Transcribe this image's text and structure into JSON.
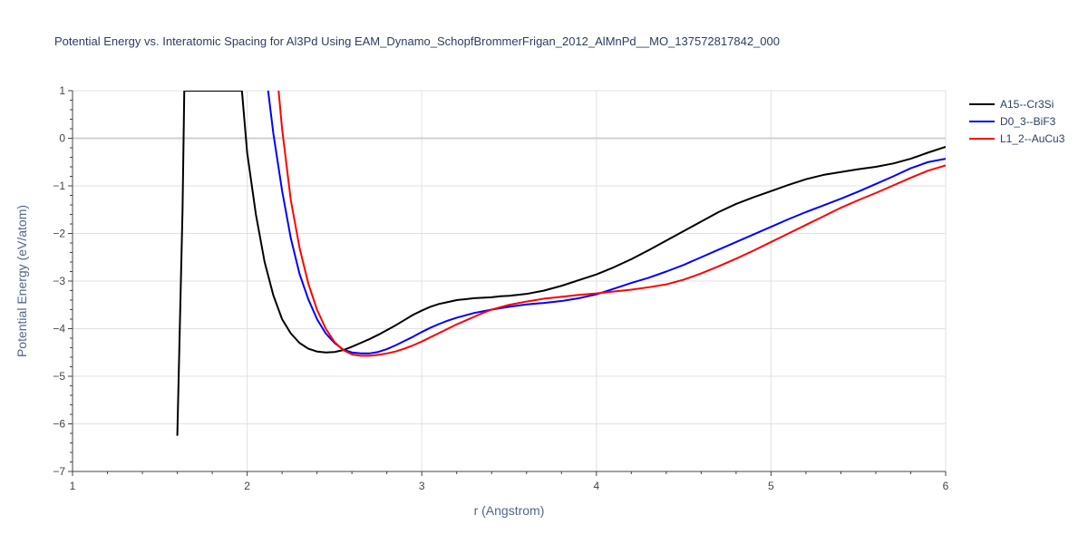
{
  "chart_data": {
    "type": "line",
    "title": "Potential Energy vs. Interatomic Spacing for Al3Pd Using EAM_Dynamo_SchopfBrommerFrigan_2012_AlMnPd__MO_137572817842_000",
    "xlabel": "r (Angstrom)",
    "ylabel": "Potential Energy (eV/atom)",
    "xlim": [
      1,
      6
    ],
    "ylim": [
      -7,
      1
    ],
    "xticks": [
      1,
      2,
      3,
      4,
      5,
      6
    ],
    "yticks": [
      1,
      0,
      -1,
      -2,
      -3,
      -4,
      -5,
      -6,
      -7
    ],
    "xtick_labels": [
      "1",
      "2",
      "3",
      "4",
      "5",
      "6"
    ],
    "ytick_labels": [
      "1",
      "0",
      "−1",
      "−2",
      "−3",
      "−4",
      "−5",
      "−6",
      "−7"
    ],
    "grid": true,
    "legend_position": "top-right",
    "series": [
      {
        "name": "A15--Cr3Si",
        "color": "#000000",
        "x": [
          1.6,
          1.63,
          1.64,
          1.97,
          2.0,
          2.05,
          2.1,
          2.15,
          2.2,
          2.25,
          2.3,
          2.35,
          2.4,
          2.45,
          2.5,
          2.55,
          2.6,
          2.65,
          2.7,
          2.75,
          2.8,
          2.85,
          2.9,
          2.95,
          3.0,
          3.05,
          3.1,
          3.15,
          3.2,
          3.25,
          3.3,
          3.35,
          3.4,
          3.45,
          3.5,
          3.6,
          3.7,
          3.8,
          3.9,
          4.0,
          4.1,
          4.2,
          4.3,
          4.4,
          4.5,
          4.6,
          4.7,
          4.8,
          4.9,
          5.0,
          5.1,
          5.2,
          5.3,
          5.4,
          5.5,
          5.6,
          5.7,
          5.8,
          5.9,
          6.0
        ],
        "y": [
          -6.25,
          -1.5,
          1.0,
          1.0,
          -0.3,
          -1.6,
          -2.6,
          -3.3,
          -3.8,
          -4.1,
          -4.3,
          -4.42,
          -4.48,
          -4.5,
          -4.49,
          -4.45,
          -4.38,
          -4.3,
          -4.22,
          -4.13,
          -4.03,
          -3.93,
          -3.82,
          -3.71,
          -3.62,
          -3.54,
          -3.48,
          -3.44,
          -3.4,
          -3.38,
          -3.36,
          -3.35,
          -3.34,
          -3.32,
          -3.31,
          -3.27,
          -3.2,
          -3.1,
          -2.98,
          -2.86,
          -2.71,
          -2.54,
          -2.35,
          -2.15,
          -1.95,
          -1.75,
          -1.55,
          -1.38,
          -1.24,
          -1.11,
          -0.98,
          -0.86,
          -0.77,
          -0.71,
          -0.65,
          -0.6,
          -0.53,
          -0.43,
          -0.3,
          -0.18
        ]
      },
      {
        "name": "D0_3--BiF3",
        "color": "#0000ff",
        "x": [
          2.12,
          2.15,
          2.2,
          2.25,
          2.3,
          2.35,
          2.4,
          2.45,
          2.5,
          2.55,
          2.6,
          2.65,
          2.7,
          2.75,
          2.8,
          2.85,
          2.9,
          2.95,
          3.0,
          3.05,
          3.1,
          3.15,
          3.2,
          3.25,
          3.3,
          3.4,
          3.5,
          3.6,
          3.7,
          3.8,
          3.9,
          4.0,
          4.1,
          4.2,
          4.3,
          4.4,
          4.5,
          4.6,
          4.7,
          4.8,
          4.9,
          5.0,
          5.1,
          5.2,
          5.3,
          5.4,
          5.5,
          5.6,
          5.7,
          5.8,
          5.9,
          6.0
        ],
        "y": [
          1.0,
          0.1,
          -1.1,
          -2.1,
          -2.85,
          -3.38,
          -3.8,
          -4.1,
          -4.3,
          -4.44,
          -4.5,
          -4.52,
          -4.52,
          -4.49,
          -4.43,
          -4.35,
          -4.26,
          -4.17,
          -4.07,
          -3.98,
          -3.9,
          -3.83,
          -3.77,
          -3.72,
          -3.67,
          -3.6,
          -3.54,
          -3.49,
          -3.46,
          -3.42,
          -3.36,
          -3.28,
          -3.16,
          -3.04,
          -2.93,
          -2.8,
          -2.66,
          -2.5,
          -2.34,
          -2.18,
          -2.02,
          -1.86,
          -1.7,
          -1.55,
          -1.41,
          -1.27,
          -1.12,
          -0.96,
          -0.8,
          -0.63,
          -0.5,
          -0.43
        ]
      },
      {
        "name": "L1_2--AuCu3",
        "color": "#ff0000",
        "x": [
          2.18,
          2.2,
          2.25,
          2.3,
          2.35,
          2.4,
          2.45,
          2.5,
          2.55,
          2.6,
          2.65,
          2.7,
          2.75,
          2.8,
          2.85,
          2.9,
          2.95,
          3.0,
          3.05,
          3.1,
          3.15,
          3.2,
          3.25,
          3.3,
          3.35,
          3.4,
          3.5,
          3.6,
          3.7,
          3.8,
          3.9,
          4.0,
          4.1,
          4.2,
          4.3,
          4.4,
          4.5,
          4.6,
          4.7,
          4.8,
          4.9,
          5.0,
          5.1,
          5.2,
          5.3,
          5.4,
          5.5,
          5.6,
          5.7,
          5.8,
          5.9,
          6.0
        ],
        "y": [
          1.0,
          0.2,
          -1.3,
          -2.3,
          -3.05,
          -3.6,
          -4.0,
          -4.28,
          -4.45,
          -4.54,
          -4.57,
          -4.57,
          -4.55,
          -4.52,
          -4.48,
          -4.42,
          -4.35,
          -4.27,
          -4.18,
          -4.09,
          -4.0,
          -3.91,
          -3.83,
          -3.75,
          -3.67,
          -3.6,
          -3.5,
          -3.43,
          -3.37,
          -3.33,
          -3.29,
          -3.26,
          -3.22,
          -3.18,
          -3.13,
          -3.07,
          -2.97,
          -2.84,
          -2.69,
          -2.53,
          -2.36,
          -2.18,
          -2.0,
          -1.82,
          -1.64,
          -1.46,
          -1.3,
          -1.15,
          -0.99,
          -0.83,
          -0.68,
          -0.57
        ]
      }
    ]
  }
}
